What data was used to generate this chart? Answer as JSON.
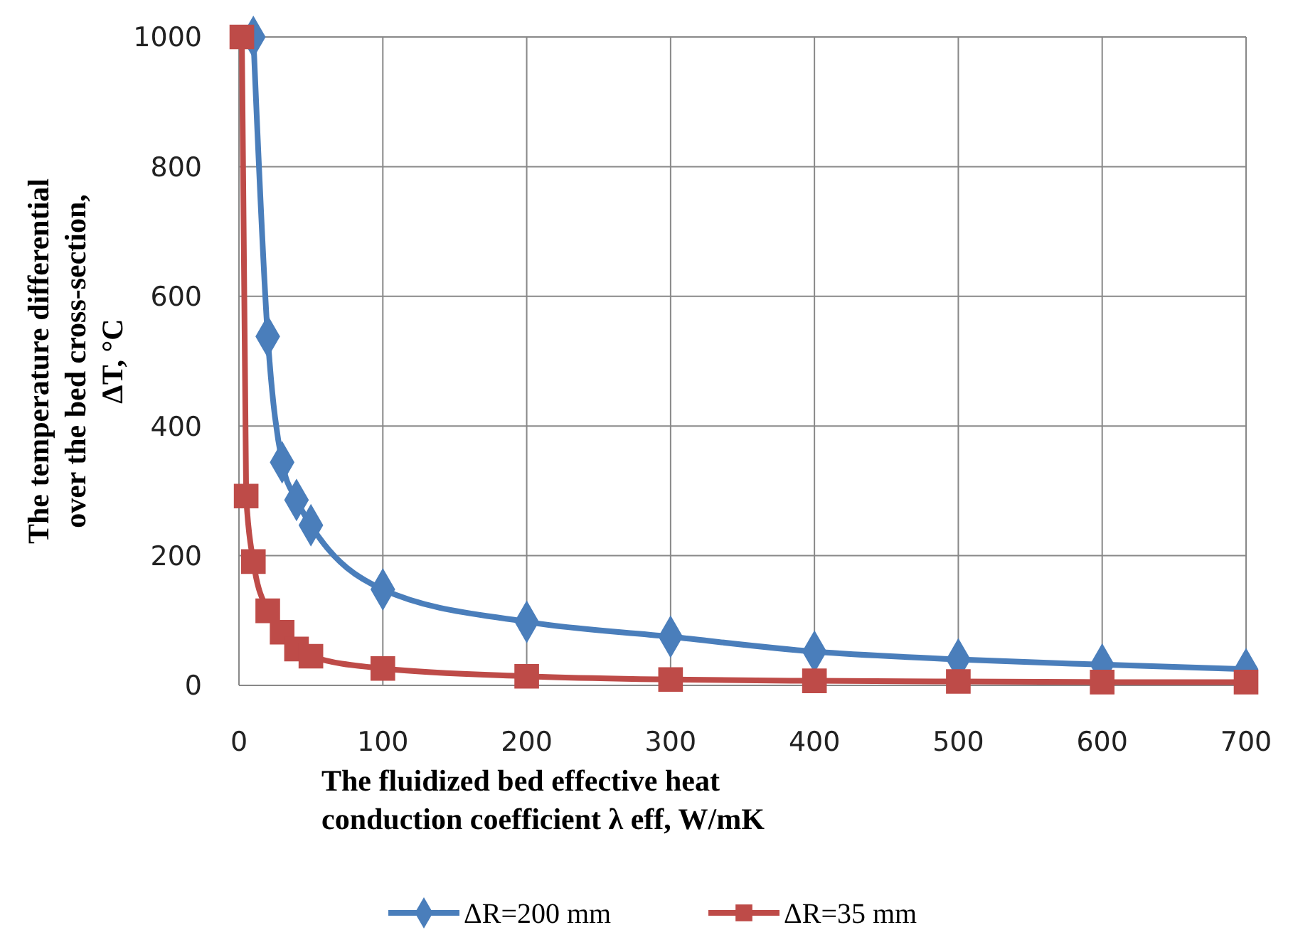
{
  "chart_data": {
    "type": "line",
    "xlabel": "The fluidized bed effective heat conduction coefficient  λ eff,  W/mK",
    "ylabel": "The temperature differential over the bed cross-section, ΔT, °C",
    "xlim": [
      0,
      700
    ],
    "xticks": [
      0,
      100,
      200,
      300,
      400,
      500,
      600,
      700
    ],
    "ylim": [
      0,
      1000
    ],
    "yticks": [
      0,
      200,
      400,
      600,
      800,
      1000
    ],
    "grid": true,
    "legend": "bottom",
    "series": [
      {
        "name": "ΔR=200 mm",
        "color": "#4a7ebb",
        "marker": "diamond",
        "x": [
          10,
          20,
          30,
          40,
          50,
          100,
          200,
          300,
          400,
          500,
          600,
          700
        ],
        "values": [
          1000,
          538,
          344,
          286,
          247,
          148,
          98,
          75,
          52,
          40,
          32,
          25
        ]
      },
      {
        "name": "ΔR=35 mm",
        "color": "#be4b48",
        "marker": "square",
        "x": [
          2,
          5,
          10,
          20,
          30,
          40,
          50,
          100,
          200,
          300,
          400,
          500,
          600,
          700
        ],
        "values": [
          1000,
          292,
          191,
          115,
          82,
          56,
          45,
          26,
          14,
          9,
          7,
          6,
          5,
          5
        ]
      }
    ]
  }
}
